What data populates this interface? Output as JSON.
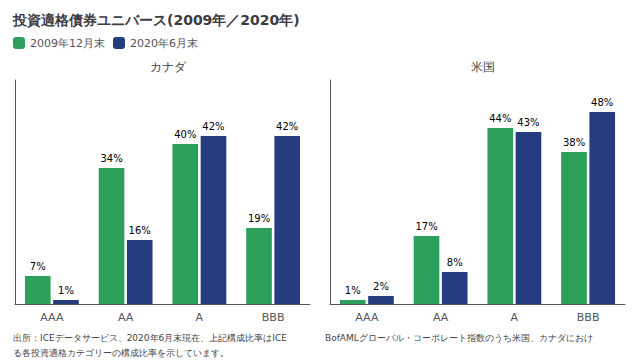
{
  "chart_data": [
    {
      "type": "bar",
      "title": "投資適格債券ユニバース(2009年／2020年)",
      "subtitle": "カナダ",
      "categories": [
        "AAA",
        "AA",
        "A",
        "BBB"
      ],
      "series": [
        {
          "name": "2009年12月末",
          "color": "#2ca05a",
          "values": [
            7,
            34,
            40,
            19
          ],
          "value_labels": [
            "7%",
            "34%",
            "40%",
            "19%"
          ]
        },
        {
          "name": "2020年6月末",
          "color": "#253d7e",
          "values": [
            1,
            16,
            42,
            42
          ],
          "value_labels": [
            "1%",
            "16%",
            "42%",
            "42%"
          ]
        }
      ],
      "ylim": [
        0,
        56
      ],
      "yticks": [],
      "grid": false,
      "legend": "upper left",
      "data_labels": true,
      "tick_labels": "x",
      "annotations": [
        "出所：ICEデータサービス、2020年6月末現在、上記構成比率はICE",
        "BofAMLグローバル・コーポレート指数のうち米国、カナダにおけ",
        "る各投資適格カテゴリーの構成比率を示しています。"
      ]
    },
    {
      "type": "bar",
      "subtitle": "米国",
      "categories": [
        "AAA",
        "AA",
        "A",
        "BBB"
      ],
      "series": [
        {
          "name": "2009年12月末",
          "color": "#2ca05a",
          "values": [
            1,
            17,
            44,
            38
          ],
          "value_labels": [
            "1%",
            "17%",
            "44%",
            "38%"
          ]
        },
        {
          "name": "2020年6月末",
          "color": "#253d7e",
          "values": [
            2,
            8,
            43,
            48
          ],
          "value_labels": [
            "2%",
            "8%",
            "43%",
            "48%"
          ]
        }
      ],
      "ylim": [
        0,
        56
      ],
      "yticks": [],
      "grid": false,
      "data_labels": true,
      "tick_labels": "x"
    }
  ]
}
